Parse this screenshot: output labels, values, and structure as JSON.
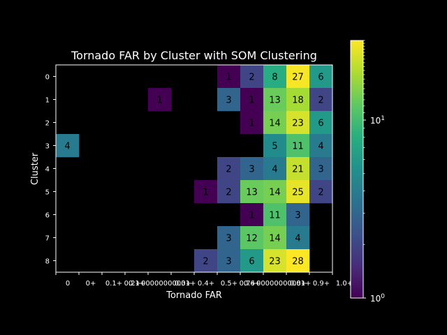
{
  "chart_data": {
    "type": "heatmap",
    "title": "Tornado FAR by Cluster with SOM Clustering",
    "xlabel": "Tornado FAR",
    "ylabel": "Cluster",
    "x_ticklabels": [
      "0",
      "0+",
      "0.1+",
      "0.1+",
      "0.2+00000000001+",
      "0.3+",
      "0.4+",
      "0.5+",
      "0.6+",
      "0.7+00000000001+",
      "0.8+",
      "0.9+",
      "1.0+"
    ],
    "y_ticklabels": [
      "0",
      "1",
      "2",
      "3",
      "4",
      "5",
      "6",
      "7",
      "8"
    ],
    "colorbar": {
      "scale": "log",
      "min": 1,
      "max": 28,
      "tick_labels": [
        "10^0",
        "10^1"
      ]
    },
    "colormap": "viridis",
    "grid": [
      [
        null,
        null,
        null,
        null,
        null,
        null,
        null,
        1,
        2,
        8,
        27,
        6
      ],
      [
        null,
        null,
        null,
        null,
        1,
        null,
        null,
        3,
        1,
        13,
        18,
        2
      ],
      [
        null,
        null,
        null,
        null,
        null,
        null,
        null,
        null,
        1,
        14,
        23,
        6
      ],
      [
        4,
        null,
        null,
        null,
        null,
        null,
        null,
        null,
        null,
        5,
        11,
        4
      ],
      [
        null,
        null,
        null,
        null,
        null,
        null,
        null,
        2,
        3,
        4,
        21,
        3
      ],
      [
        null,
        null,
        null,
        null,
        null,
        null,
        1,
        2,
        13,
        14,
        25,
        2
      ],
      [
        null,
        null,
        null,
        null,
        null,
        null,
        null,
        null,
        1,
        11,
        3,
        null
      ],
      [
        null,
        null,
        null,
        null,
        null,
        null,
        null,
        3,
        12,
        14,
        4,
        null
      ],
      [
        null,
        null,
        null,
        null,
        null,
        null,
        2,
        3,
        6,
        23,
        28,
        null
      ]
    ]
  },
  "colors": {
    "background": "#000000",
    "foreground": "#ffffff"
  }
}
